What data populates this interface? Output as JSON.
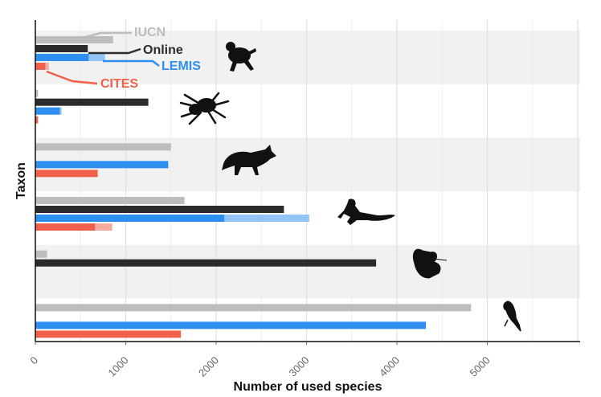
{
  "chart_data": {
    "type": "bar",
    "orientation": "horizontal",
    "xlabel": "Number of used species",
    "ylabel": "Taxon",
    "xlim": [
      0,
      6000
    ],
    "xticks": [
      "0",
      "1000",
      "2000",
      "3000",
      "4000",
      "5000"
    ],
    "grid": true,
    "taxa": [
      {
        "icon": "frog-silhouette-icon"
      },
      {
        "icon": "spider-silhouette-icon"
      },
      {
        "icon": "fox-silhouette-icon"
      },
      {
        "icon": "lizard-silhouette-icon"
      },
      {
        "icon": "butterfly-silhouette-icon"
      },
      {
        "icon": "parrot-silhouette-icon"
      }
    ],
    "series": [
      {
        "name": "IUCN",
        "color": "#bdbdbd",
        "values": [
          860,
          30,
          1500,
          1650,
          130,
          4820
        ]
      },
      {
        "name": "Online",
        "color": "#2b2b2b",
        "values": [
          580,
          1250,
          0,
          2750,
          3770,
          0
        ]
      },
      {
        "name": "LEMIS",
        "color": "#2f8ff0",
        "light_color": "#93c4f7",
        "values": [
          590,
          270,
          1470,
          2090,
          0,
          4320
        ],
        "light_values": [
          770,
          290,
          0,
          3030,
          0,
          0
        ]
      },
      {
        "name": "CITES",
        "color": "#f0604a",
        "light_color": "#f6aba0",
        "values": [
          110,
          30,
          690,
          660,
          0,
          1610
        ],
        "light_values": [
          150,
          0,
          0,
          850,
          0,
          0
        ]
      }
    ]
  }
}
